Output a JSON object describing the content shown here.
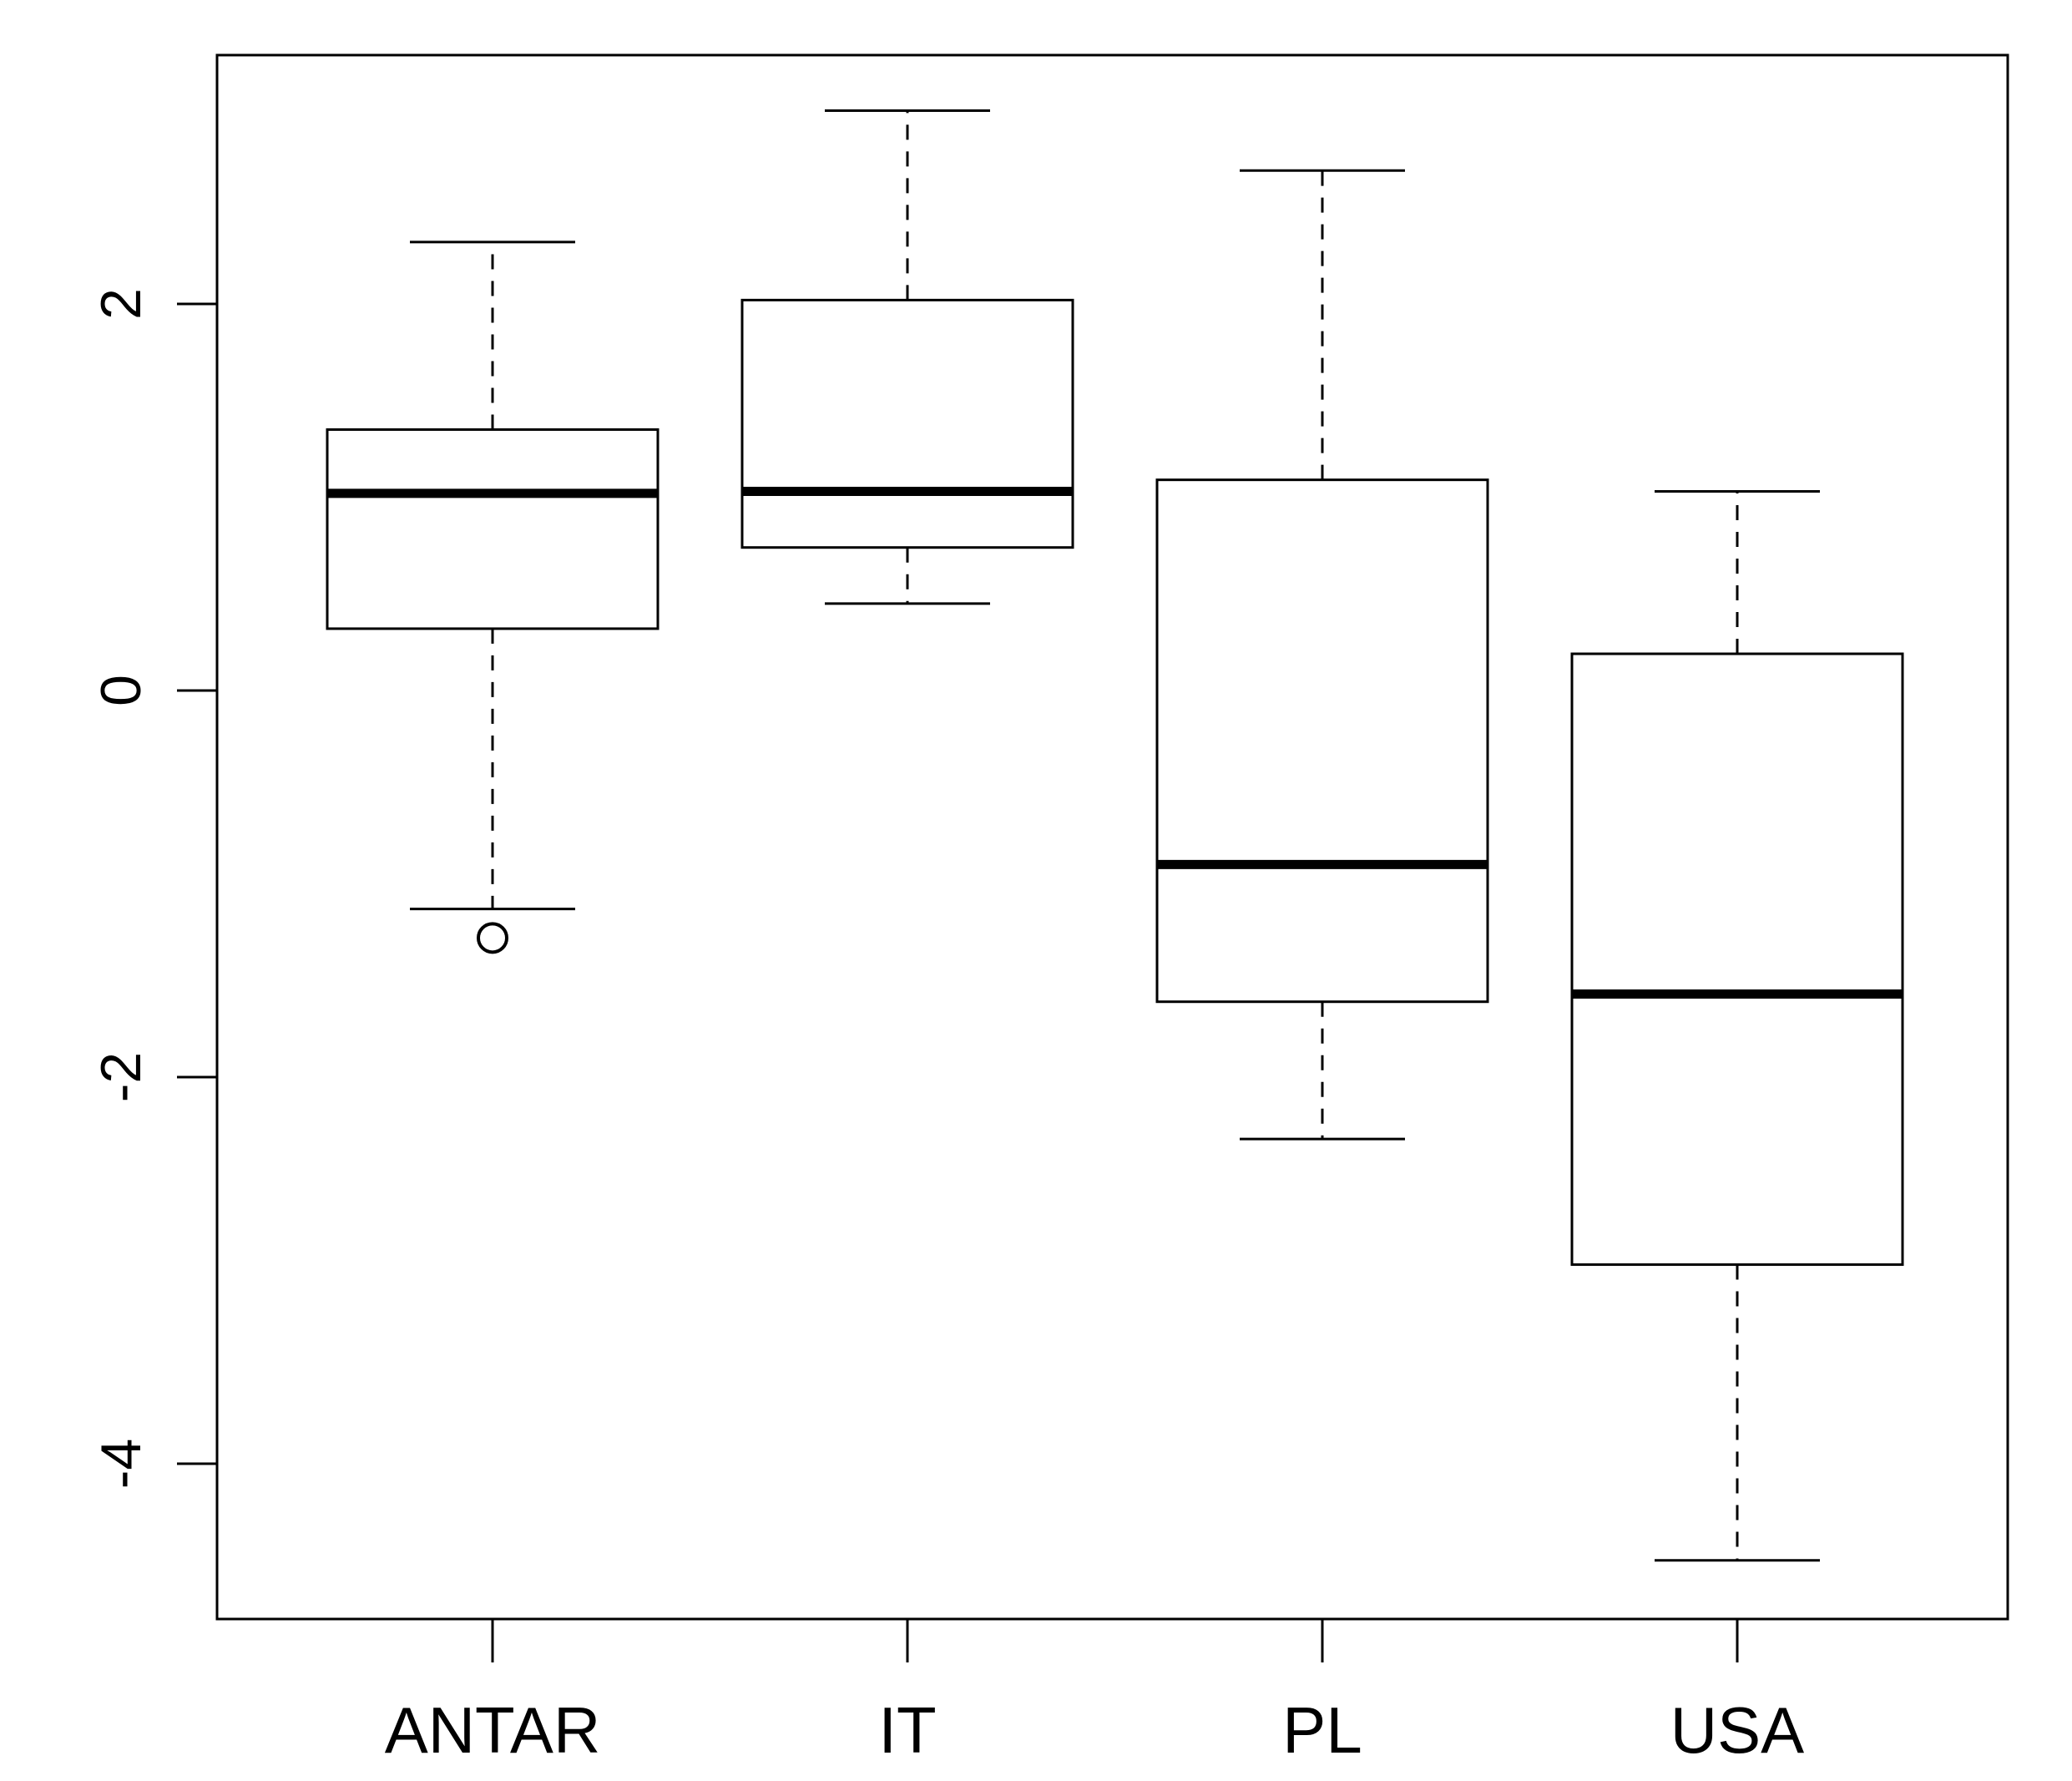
{
  "chart_data": {
    "type": "boxplot",
    "title": "",
    "xlabel": "",
    "ylabel": "",
    "categories": [
      "ANTAR",
      "IT",
      "PL",
      "USA"
    ],
    "boxes": [
      {
        "category": "ANTAR",
        "whisker_low": -1.13,
        "q1": 0.32,
        "median": 1.02,
        "q3": 1.35,
        "whisker_high": 2.32,
        "outliers": [
          -1.28
        ]
      },
      {
        "category": "IT",
        "whisker_low": 0.45,
        "q1": 0.74,
        "median": 1.03,
        "q3": 2.02,
        "whisker_high": 3.0,
        "outliers": []
      },
      {
        "category": "PL",
        "whisker_low": -2.32,
        "q1": -1.61,
        "median": -0.9,
        "q3": 1.09,
        "whisker_high": 2.69,
        "outliers": []
      },
      {
        "category": "USA",
        "whisker_low": -4.5,
        "q1": -2.97,
        "median": -1.57,
        "q3": 0.19,
        "whisker_high": 1.03,
        "outliers": []
      }
    ],
    "ylim": [
      -4.8,
      3.3
    ],
    "yticks": [
      -4,
      -2,
      0,
      2
    ],
    "ytick_labels": [
      "-4",
      "-2",
      "0",
      "2"
    ],
    "grid": false,
    "colors": {
      "stroke": "#000000",
      "box_fill": "#ffffff"
    }
  }
}
